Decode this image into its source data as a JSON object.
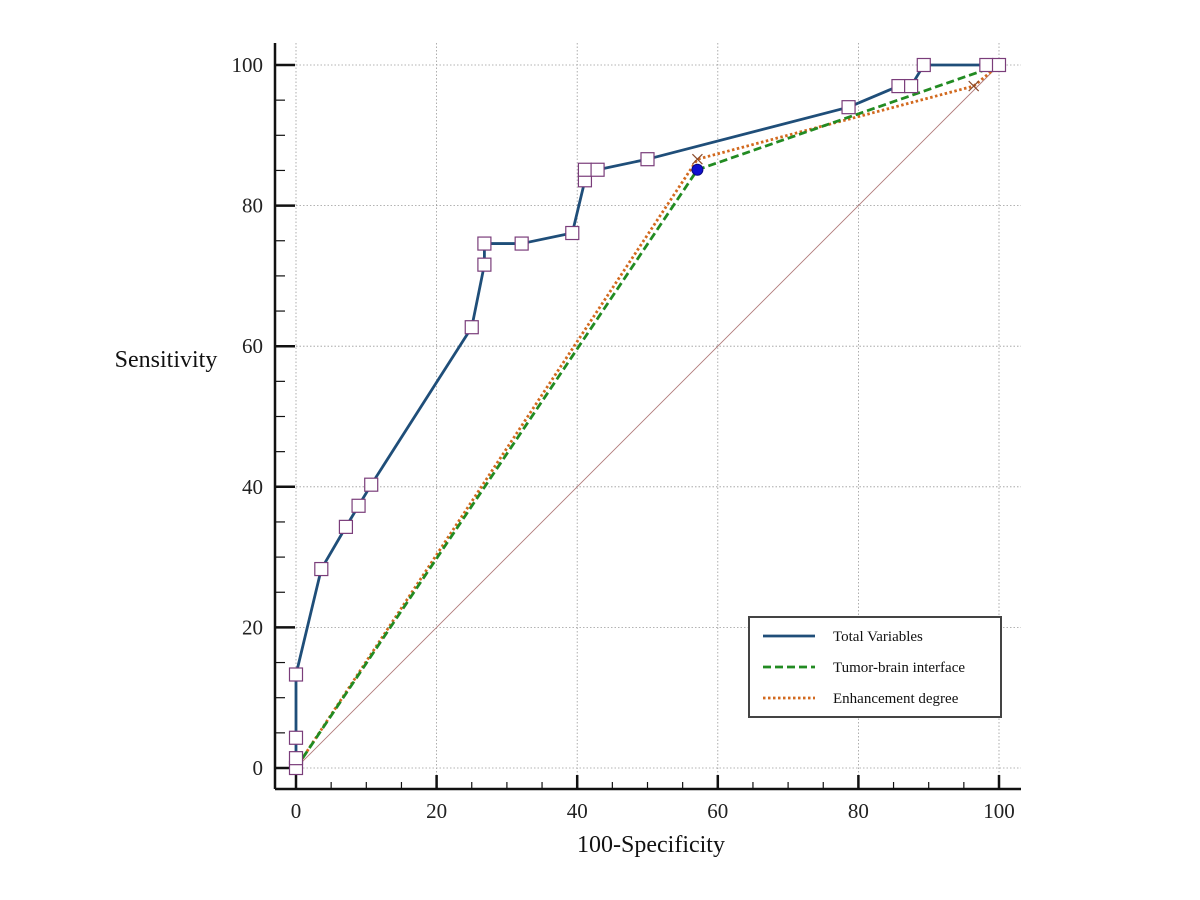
{
  "chart_data": {
    "type": "line",
    "xlabel": "100-Specificity",
    "ylabel": "Sensitivity",
    "xlim": [
      -3,
      103
    ],
    "ylim": [
      -3,
      103
    ],
    "x_ticks": [
      0,
      20,
      40,
      60,
      80,
      100
    ],
    "y_ticks": [
      0,
      20,
      40,
      60,
      80,
      100
    ],
    "grid": true,
    "legend_position": "bottom-right",
    "reference_line": {
      "x": [
        0,
        100
      ],
      "y": [
        0,
        100
      ],
      "color": "#b07a7a"
    },
    "series": [
      {
        "name": "Total Variables",
        "color": "#1f4e79",
        "style": "solid",
        "marker": "square",
        "x": [
          0,
          0,
          0,
          0,
          3.6,
          7.1,
          8.9,
          10.7,
          25.0,
          26.8,
          26.8,
          32.1,
          39.3,
          41.1,
          41.1,
          42.9,
          50.0,
          78.6,
          85.7,
          87.5,
          89.3,
          98.2,
          100
        ],
        "y": [
          0,
          1.4,
          4.3,
          13.3,
          28.3,
          34.3,
          37.3,
          40.3,
          62.7,
          71.6,
          74.6,
          74.6,
          76.1,
          83.6,
          85.1,
          85.1,
          86.6,
          94.0,
          97.0,
          97.0,
          100,
          100,
          100
        ]
      },
      {
        "name": "Tumor-brain interface",
        "color": "#228b22",
        "style": "dashed",
        "marker": "circle",
        "x": [
          0,
          57.1,
          100
        ],
        "y": [
          0,
          85.1,
          100
        ]
      },
      {
        "name": "Enhancement degree",
        "color": "#d2691e",
        "style": "dotted",
        "marker": "cross",
        "x": [
          0,
          57.1,
          96.4,
          100
        ],
        "y": [
          0,
          86.6,
          97.0,
          100
        ]
      }
    ]
  }
}
